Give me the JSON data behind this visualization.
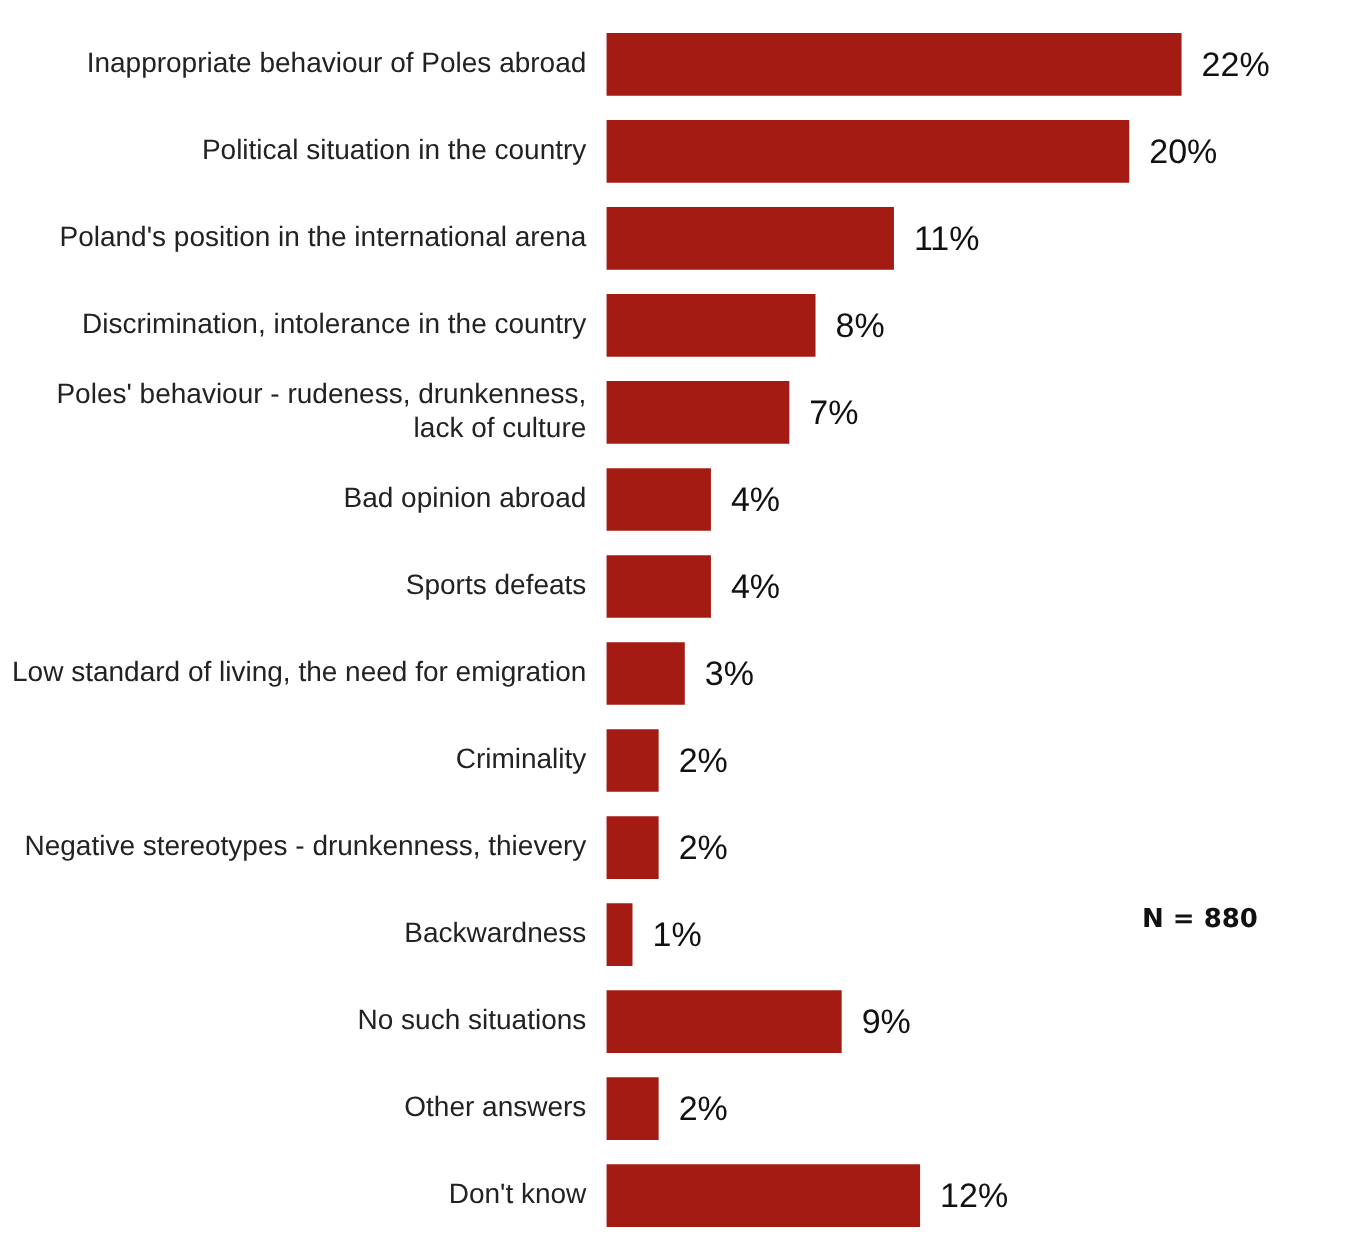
{
  "chart_data": {
    "type": "bar",
    "orientation": "horizontal",
    "categories": [
      "Inappropriate behaviour of Poles abroad",
      "Political situation in the country",
      "Poland's position in the international arena",
      "Discrimination, intolerance in the country",
      "Poles' behaviour - rudeness, drunkenness,\nlack of culture",
      "Bad opinion abroad",
      "Sports defeats",
      "Low standard of living, the need for emigration",
      "Criminality",
      "Negative stereotypes - drunkenness, thievery",
      "Backwardness",
      "No such situations",
      "Other answers",
      "Don't know"
    ],
    "values": [
      22,
      20,
      11,
      8,
      7,
      4,
      4,
      3,
      2,
      2,
      1,
      9,
      2,
      12
    ],
    "value_labels": [
      "22%",
      "20%",
      "11%",
      "8%",
      "7%",
      "4%",
      "4%",
      "3%",
      "2%",
      "2%",
      "1%",
      "9%",
      "2%",
      "12%"
    ],
    "color": "#a31b12",
    "legend": false,
    "annotations": [
      "N = 880"
    ]
  }
}
